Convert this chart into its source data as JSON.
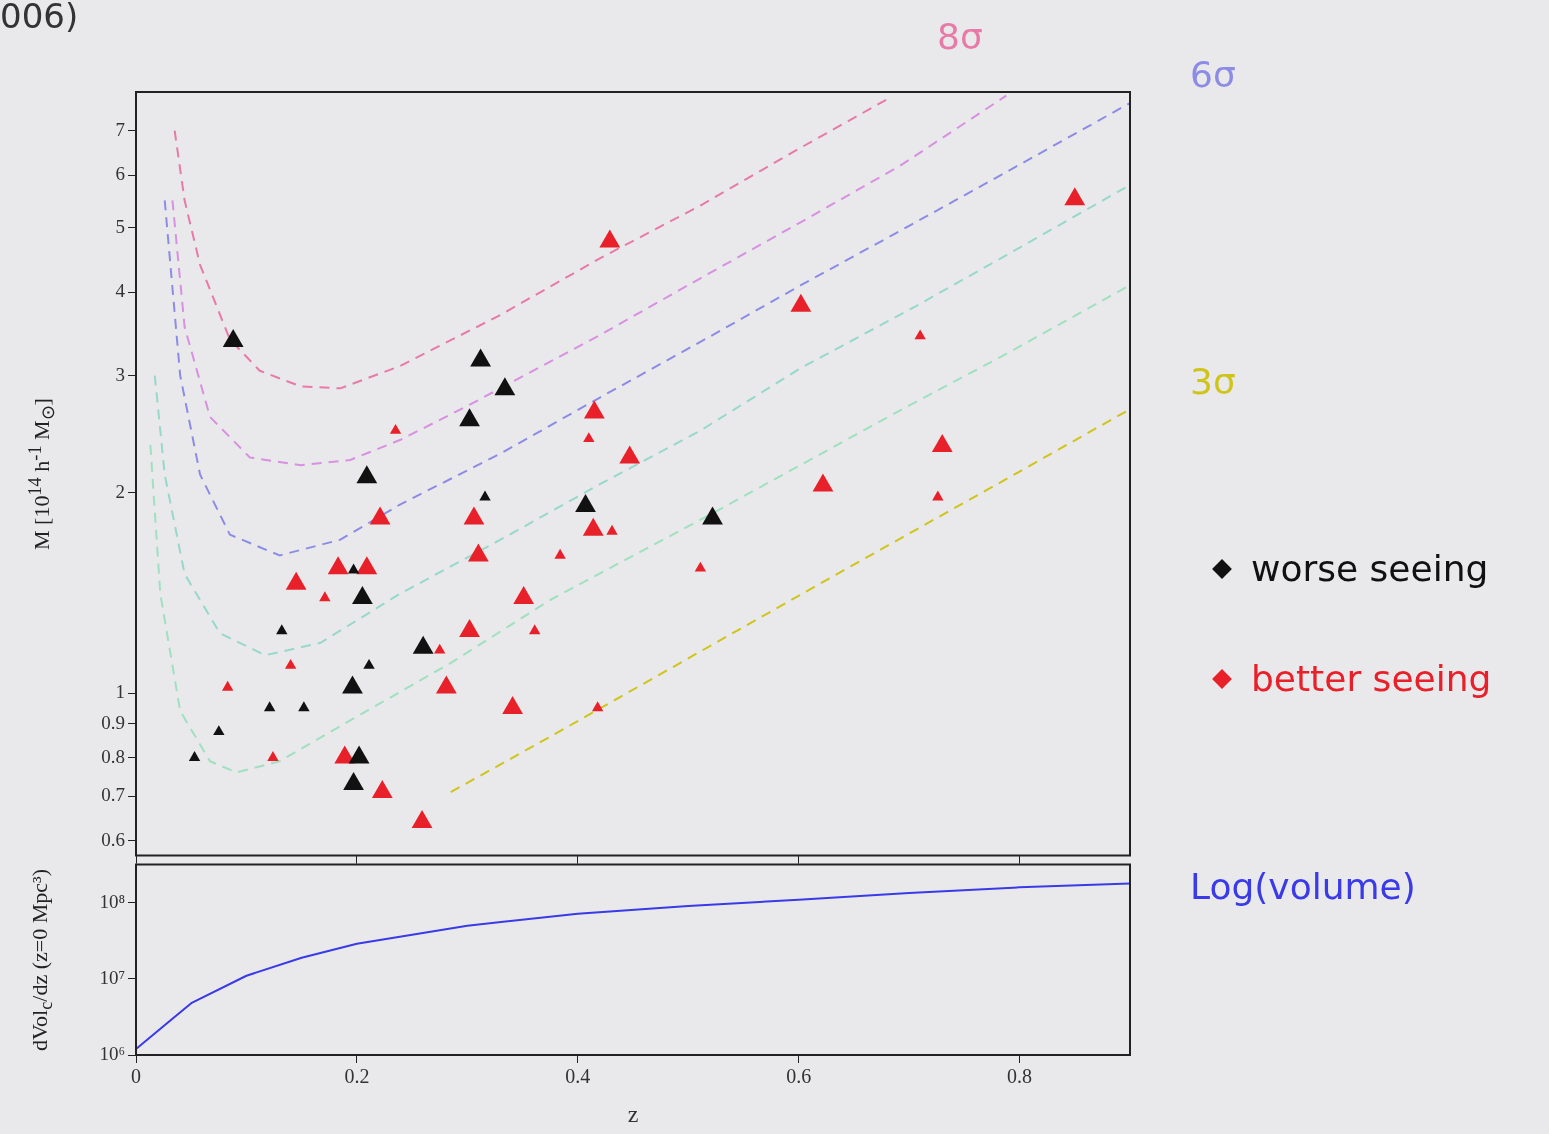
{
  "chart_data": [
    {
      "type": "bubble",
      "ylabel": "M [10$^{14}$ h$^{-1}$ M$_{⊙}$]",
      "annotations": [
        "006)"
      ],
      "xlim": [
        0,
        0.9
      ],
      "xticks": [
        0,
        0.2,
        0.4,
        0.6,
        0.8
      ],
      "ylim": [
        0.57,
        8
      ],
      "yticks": [
        0.6,
        0.7,
        0.8,
        0.9,
        1,
        2,
        3,
        4,
        5,
        6,
        7
      ],
      "log": "y",
      "tick_labels": "y",
      "marker": "triangle",
      "legend": "right",
      "series": [
        {
          "type": "line",
          "name": "8σ",
          "color": "#e87aa8",
          "line_style": "dashed",
          "marker": "none",
          "x": [
            0.035,
            0.044,
            0.058,
            0.085,
            0.112,
            0.149,
            0.185,
            0.239,
            0.33,
            0.42,
            0.511,
            0.602,
            0.68
          ],
          "values": [
            7.0,
            5.5,
            4.4,
            3.4,
            3.05,
            2.89,
            2.87,
            3.1,
            3.7,
            4.5,
            5.4,
            6.6,
            7.8
          ]
        },
        {
          "type": "line",
          "color": "#d890e0",
          "line_style": "dashed",
          "marker": "none",
          "x": [
            0.033,
            0.044,
            0.067,
            0.103,
            0.149,
            0.194,
            0.239,
            0.3,
            0.42,
            0.511,
            0.602,
            0.692,
            0.788
          ],
          "values": [
            5.5,
            3.55,
            2.6,
            2.26,
            2.2,
            2.24,
            2.4,
            2.7,
            3.45,
            4.2,
            5.1,
            6.2,
            7.9
          ]
        },
        {
          "type": "line",
          "name": "6σ",
          "color": "#8c8ce6",
          "line_style": "dashed",
          "marker": "none",
          "x": [
            0.026,
            0.04,
            0.058,
            0.085,
            0.13,
            0.185,
            0.239,
            0.33,
            0.42,
            0.511,
            0.602,
            0.692,
            0.783,
            0.9
          ],
          "values": [
            5.5,
            3.0,
            2.13,
            1.73,
            1.61,
            1.7,
            1.92,
            2.29,
            2.78,
            3.37,
            4.1,
            4.95,
            6.0,
            7.7
          ]
        },
        {
          "type": "line",
          "color": "#98d8c8",
          "line_style": "dashed",
          "marker": "none",
          "x": [
            0.017,
            0.026,
            0.044,
            0.076,
            0.117,
            0.167,
            0.239,
            0.33,
            0.42,
            0.511,
            0.602,
            0.702,
            0.783,
            0.9
          ],
          "values": [
            3.0,
            2.13,
            1.51,
            1.23,
            1.14,
            1.19,
            1.41,
            1.7,
            2.06,
            2.48,
            3.08,
            3.78,
            4.5,
            5.8
          ]
        },
        {
          "type": "line",
          "color": "#a0e0c0",
          "line_style": "dashed",
          "marker": "none",
          "x": [
            0.013,
            0.022,
            0.04,
            0.067,
            0.091,
            0.13,
            0.194,
            0.285,
            0.375,
            0.529,
            0.692,
            0.783,
            0.9
          ],
          "values": [
            2.36,
            1.41,
            0.94,
            0.79,
            0.76,
            0.79,
            0.91,
            1.11,
            1.38,
            1.89,
            2.66,
            3.2,
            4.1
          ]
        },
        {
          "type": "line",
          "name": "3σ",
          "color": "#cfc51a",
          "line_style": "dashed",
          "marker": "none",
          "x": [
            0.285,
            0.375,
            0.505,
            0.647,
            0.793,
            0.9
          ],
          "values": [
            0.71,
            0.86,
            1.14,
            1.55,
            2.12,
            2.67
          ]
        },
        {
          "name": "worse seeing",
          "color": "#111111",
          "x": [
            0.088,
            0.312,
            0.334,
            0.302,
            0.209,
            0.316,
            0.407,
            0.197,
            0.205,
            0.132,
            0.26,
            0.211,
            0.196,
            0.121,
            0.152,
            0.075,
            0.053,
            0.202,
            0.197,
            0.522
          ],
          "values": [
            3.38,
            3.16,
            2.86,
            2.57,
            2.11,
            1.97,
            1.91,
            1.53,
            1.39,
            1.24,
            1.17,
            1.1,
            1.02,
            0.95,
            0.95,
            0.875,
            0.8,
            0.8,
            0.73,
            1.83
          ],
          "sizes": [
            1,
            1,
            1,
            1,
            1,
            0.3,
            1,
            0.3,
            1,
            0.3,
            1,
            0.3,
            1,
            0.3,
            0.3,
            0.3,
            0.3,
            1,
            1,
            1
          ]
        },
        {
          "name": "better seeing",
          "color": "#e8202a",
          "x": [
            0.429,
            0.235,
            0.415,
            0.41,
            0.447,
            0.221,
            0.306,
            0.85,
            0.602,
            0.71,
            0.73,
            0.622,
            0.726,
            0.414,
            0.431,
            0.31,
            0.384,
            0.183,
            0.209,
            0.145,
            0.171,
            0.351,
            0.302,
            0.361,
            0.275,
            0.14,
            0.281,
            0.083,
            0.341,
            0.418,
            0.124,
            0.189,
            0.223,
            0.259,
            0.511
          ],
          "values": [
            4.77,
            2.48,
            2.64,
            2.41,
            2.26,
            1.83,
            1.83,
            5.52,
            3.82,
            3.44,
            2.35,
            2.05,
            1.97,
            1.76,
            1.75,
            1.61,
            1.61,
            1.54,
            1.54,
            1.46,
            1.39,
            1.39,
            1.24,
            1.24,
            1.16,
            1.1,
            1.02,
            1.02,
            0.95,
            0.95,
            0.8,
            0.8,
            0.71,
            0.64,
            1.54
          ],
          "sizes": [
            1,
            0.3,
            1,
            0.3,
            1,
            1,
            1,
            1,
            1,
            0.3,
            1,
            1,
            0.3,
            1,
            0.3,
            1,
            0.3,
            1,
            1,
            1,
            0.3,
            1,
            1,
            0.3,
            0.3,
            0.3,
            1,
            0.3,
            1,
            0.3,
            0.3,
            1,
            1,
            1,
            0.3
          ]
        }
      ]
    },
    {
      "type": "line",
      "xlabel": "z",
      "ylabel": "dVol$_{c}$/dz (z=0 Mpc³)",
      "xlim": [
        0,
        0.9
      ],
      "xticks": [
        0,
        0.2,
        0.4,
        0.6,
        0.8
      ],
      "ylim": [
        1000000,
        320000000
      ],
      "yticks": [
        {
          "value": 1000000,
          "label": "10⁶"
        },
        {
          "value": 10000000,
          "label": "10⁷"
        },
        {
          "value": 100000000,
          "label": "10⁸"
        }
      ],
      "log": "y",
      "series": [
        {
          "name": "Log(volume)",
          "color": "#3a3ae8",
          "line_style": "solid",
          "x": [
            0,
            0.05,
            0.1,
            0.15,
            0.2,
            0.3,
            0.4,
            0.5,
            0.6,
            0.7,
            0.8,
            0.9
          ],
          "values": [
            1200000,
            4800000,
            11000000,
            19000000,
            29000000,
            50000000,
            72000000,
            91000000,
            110000000,
            135000000,
            160000000,
            180000000
          ]
        }
      ]
    }
  ]
}
